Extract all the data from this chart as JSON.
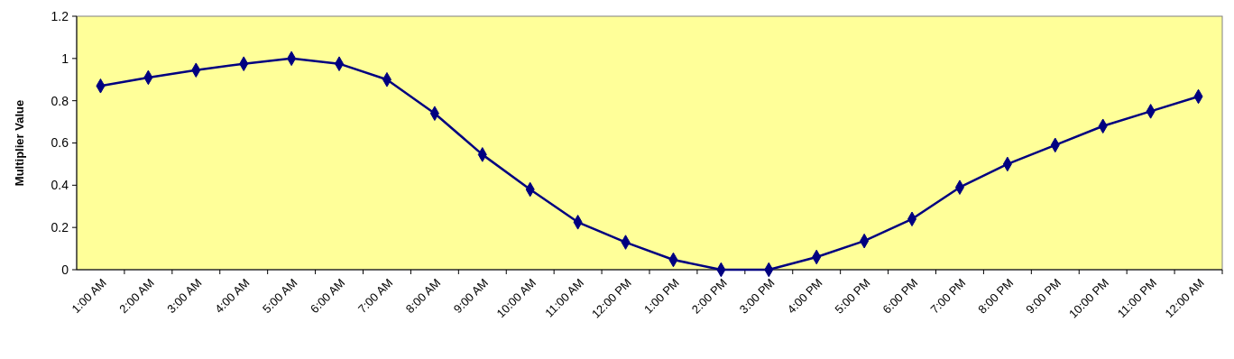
{
  "chart_data": {
    "type": "line",
    "ylabel": "Multiplier Value",
    "categories": [
      "1:00 AM",
      "2:00 AM",
      "3:00 AM",
      "4:00 AM",
      "5:00 AM",
      "6:00 AM",
      "7:00 AM",
      "8:00 AM",
      "9:00 AM",
      "10:00 AM",
      "11:00 AM",
      "12:00 PM",
      "1:00 PM",
      "2:00 PM",
      "3:00 PM",
      "4:00 PM",
      "5:00 PM",
      "6:00 PM",
      "7:00 PM",
      "8:00 PM",
      "9:00 PM",
      "10:00 PM",
      "11:00 PM",
      "12:00 AM"
    ],
    "series": [
      {
        "color": "#000080",
        "values": [
          0.87,
          0.91,
          0.945,
          0.975,
          1.0,
          0.975,
          0.9,
          0.74,
          0.545,
          0.38,
          0.225,
          0.13,
          0.047,
          0,
          0,
          0.06,
          0.136,
          0.24,
          0.39,
          0.5,
          0.59,
          0.68,
          0.75,
          0.82
        ]
      }
    ],
    "ylim": [
      0,
      1.2
    ],
    "yticks": [
      0,
      {
        "value": 0.2,
        "label": "0.2"
      },
      {
        "value": 0.4,
        "label": "0.4"
      },
      {
        "value": 0.6,
        "label": "0.6"
      },
      {
        "value": 0.8,
        "label": "0.8"
      },
      1,
      {
        "value": 1.2,
        "label": "1.2"
      }
    ],
    "grid": false,
    "marker": "diamond",
    "line_style": "solid"
  }
}
